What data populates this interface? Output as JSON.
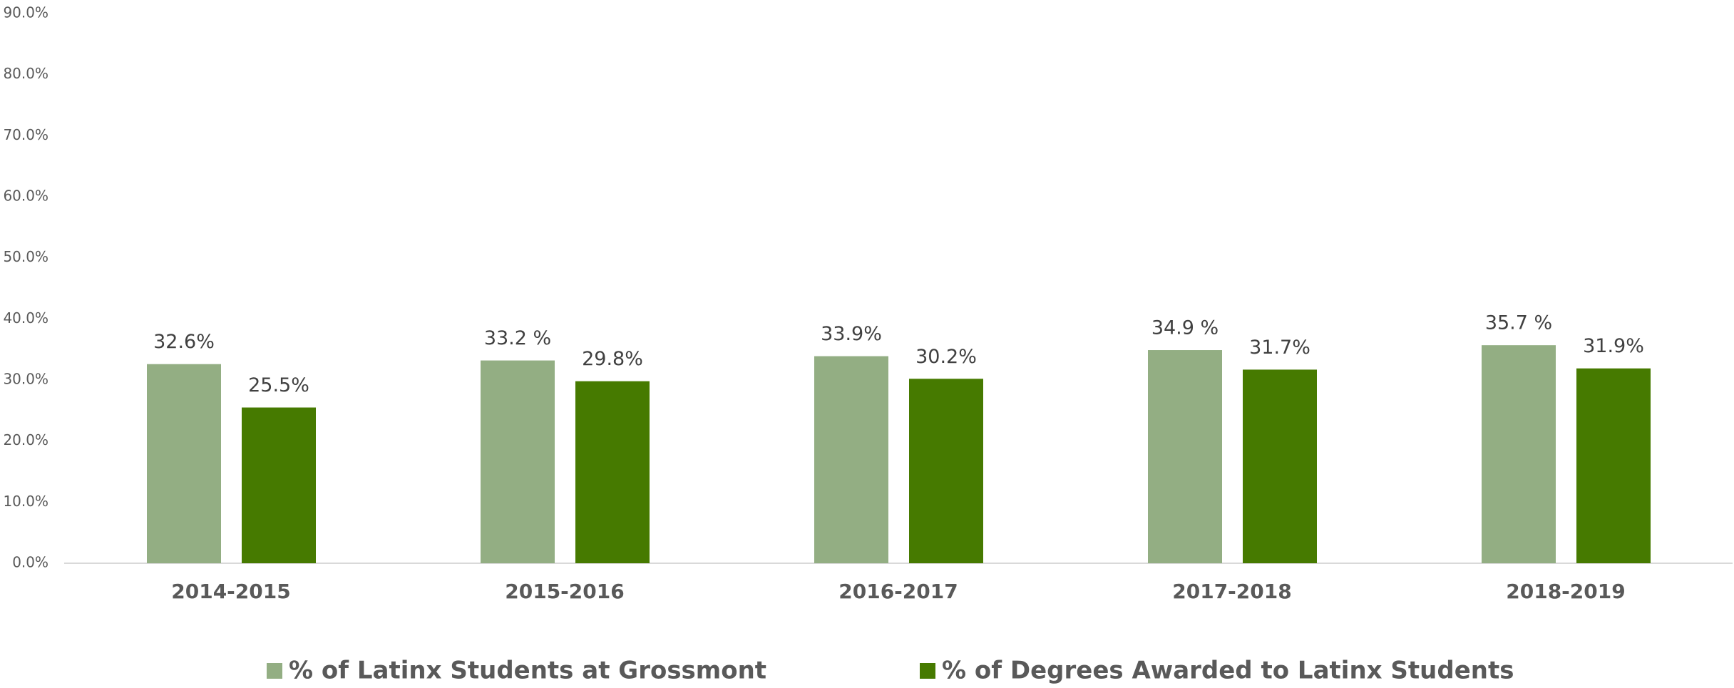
{
  "chart_data": {
    "type": "bar",
    "categories": [
      "2014-2015",
      "2015-2016",
      "2016-2017",
      "2017-2018",
      "2018-2019"
    ],
    "series": [
      {
        "name": "% of Latinx Students at Grossmont",
        "color": "#93ae83",
        "values": [
          32.6,
          33.2,
          33.9,
          34.9,
          35.7
        ],
        "value_labels": [
          "32.6%",
          "33.2 %",
          "33.9%",
          "34.9 %",
          "35.7 %"
        ]
      },
      {
        "name": "% of Degrees Awarded to Latinx Students",
        "color": "#467a00",
        "values": [
          25.5,
          29.8,
          30.2,
          31.7,
          31.9
        ],
        "value_labels": [
          "25.5%",
          "29.8%",
          "30.2%",
          "31.7%",
          "31.9%"
        ]
      }
    ],
    "ylim": [
      0,
      90
    ],
    "yticks": [
      {
        "value": 0,
        "label": "0.0%"
      },
      {
        "value": 10,
        "label": "10.0%"
      },
      {
        "value": 20,
        "label": "20.0%"
      },
      {
        "value": 30,
        "label": "30.0%"
      },
      {
        "value": 40,
        "label": "40.0%"
      },
      {
        "value": 50,
        "label": "50.0%"
      },
      {
        "value": 60,
        "label": "60.0%"
      },
      {
        "value": 70,
        "label": "70.0%"
      },
      {
        "value": 80,
        "label": "80.0%"
      },
      {
        "value": 90,
        "label": "90.0%"
      }
    ],
    "grid": false,
    "legend": "bottom"
  }
}
